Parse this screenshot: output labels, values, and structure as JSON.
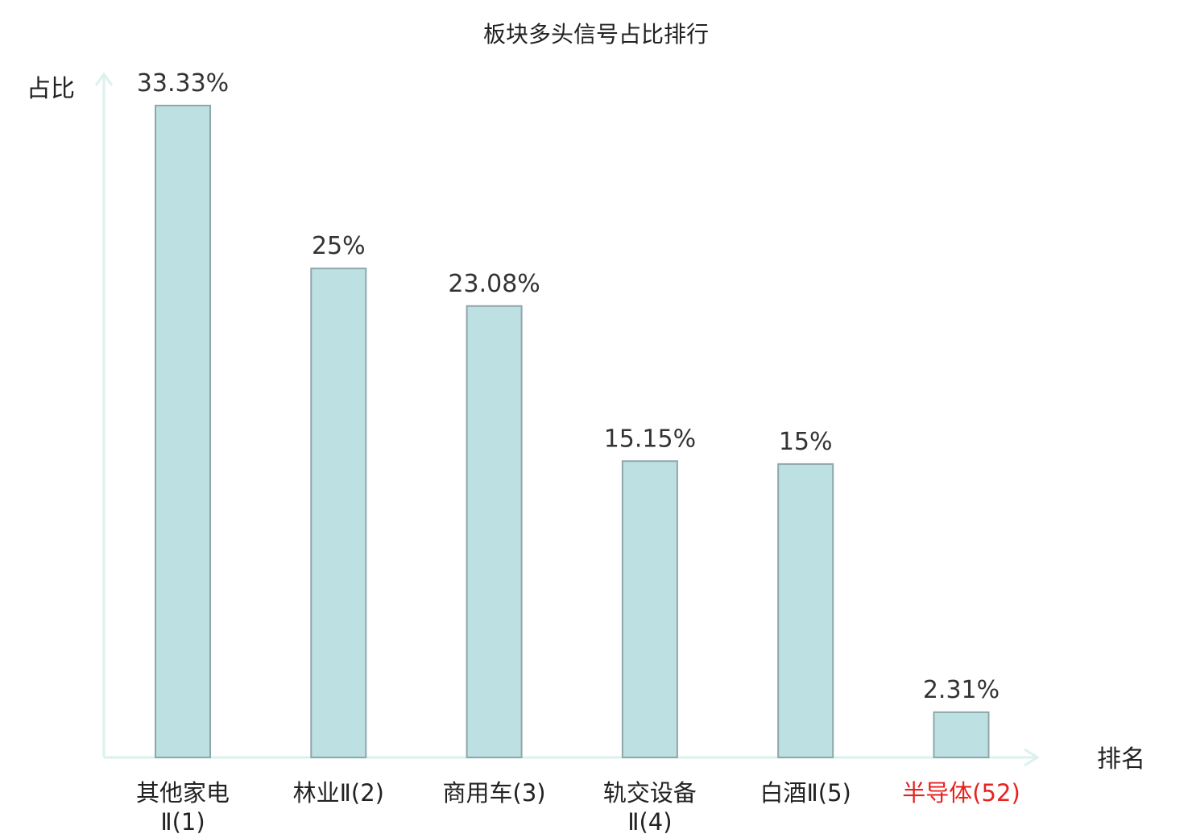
{
  "chart_data": {
    "type": "bar",
    "title": "板块多头信号占比排行",
    "ylabel": "占比",
    "xlabel": "排名",
    "ylim": [
      0,
      35
    ],
    "grid": false,
    "categories": [
      {
        "lines": [
          "其他家电",
          "Ⅱ(1)"
        ],
        "highlight": false
      },
      {
        "lines": [
          "林业Ⅱ(2)"
        ],
        "highlight": false
      },
      {
        "lines": [
          "商用车(3)"
        ],
        "highlight": false
      },
      {
        "lines": [
          "轨交设备",
          "Ⅱ(4)"
        ],
        "highlight": false
      },
      {
        "lines": [
          "白酒Ⅱ(5)"
        ],
        "highlight": false
      },
      {
        "lines": [
          "半导体(52)"
        ],
        "highlight": true
      }
    ],
    "values": [
      33.33,
      25,
      23.08,
      15.15,
      15,
      2.31
    ],
    "value_labels": [
      "33.33%",
      "25%",
      "23.08%",
      "15.15%",
      "15%",
      "2.31%"
    ],
    "colors": {
      "bar_fill": "#bde0e3",
      "bar_stroke": "#8fa7aa",
      "axis": "#dcf1ee",
      "highlight_text": "#e8221f"
    }
  }
}
